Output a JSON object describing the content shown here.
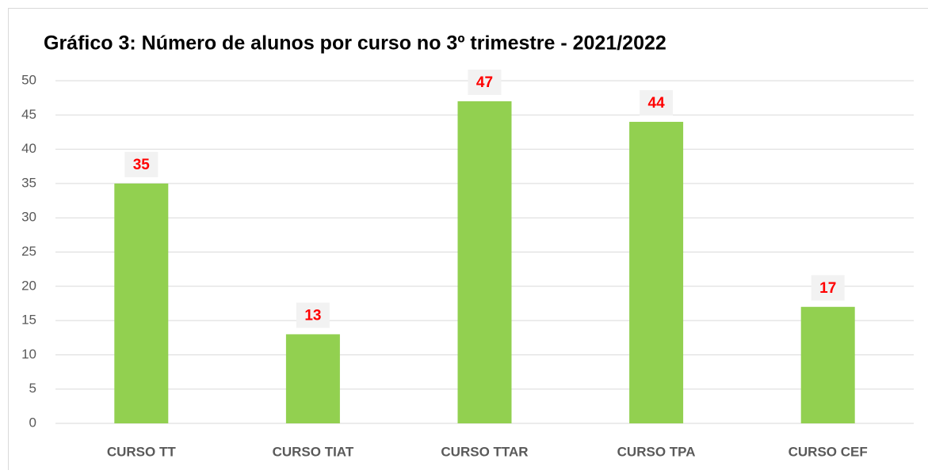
{
  "chart_data": {
    "type": "bar",
    "title": "Gráfico 3: Número de alunos por curso no 3º trimestre - 2021/2022",
    "categories": [
      "CURSO TT",
      "CURSO TIAT",
      "CURSO TTAR",
      "CURSO TPA",
      "CURSO CEF"
    ],
    "values": [
      35,
      13,
      47,
      44,
      17
    ],
    "color": "#92d050",
    "label_color": "#ff0000",
    "ylim": [
      0,
      50
    ],
    "yticks": [
      0,
      5,
      10,
      15,
      20,
      25,
      30,
      35,
      40,
      45,
      50
    ],
    "grid": true
  }
}
